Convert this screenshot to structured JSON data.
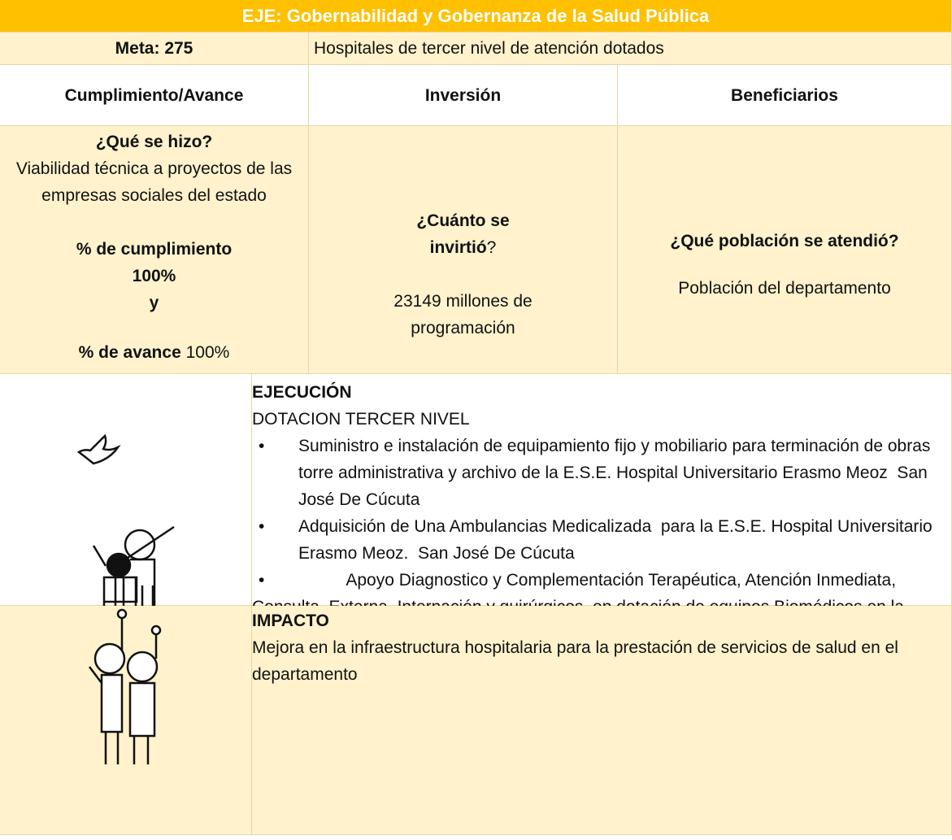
{
  "title": "EJE: Gobernabilidad y Gobernanza de la Salud Pública",
  "meta": {
    "label": "Meta: 275",
    "description": "Hospitales de tercer nivel de atención dotados"
  },
  "headers": [
    "Cumplimiento/Avance",
    "Inversión",
    "Beneficiarios"
  ],
  "cumplimiento": {
    "question": "¿Qué se hizo?",
    "answer": "Viabilidad técnica a proyectos de las empresas sociales del estado",
    "percent_label": "% de cumplimiento",
    "percent_value": "100%",
    "connector": "y",
    "avance_label": "% de avance",
    "avance_value": "100%"
  },
  "inversion": {
    "question": "¿Cuánto se invirtió",
    "question_end": "?",
    "answer": "23149 millones de programación"
  },
  "beneficiarios": {
    "question": "¿Qué población se atendió?",
    "answer": "Población del departamento"
  },
  "ejecucion": {
    "title": "EJECUCIÓN",
    "subtitle": "DOTACION TERCER NIVEL",
    "items": [
      "Suministro e instalación de equipamiento fijo y mobiliario para terminación de obras torre administrativa y archivo de la E.S.E. Hospital Universitario Erasmo Meoz  San José De Cúcuta",
      "Adquisición de Una Ambulancias Medicalizada  para la E.S.E. Hospital Universitario Erasmo Meoz.  San José De Cúcuta",
      "Apoyo Diagnostico y Complementación Terapéutica, Atención Inmediata, Consulta  Externa, Internación y quirúrgicos  en dotación de equipos Biomédicos en la E.S.E Hospital Universitario Erasmo Meoz.   San José De Cúcuta"
    ]
  },
  "impacto": {
    "title": "IMPACTO",
    "text": "Mejora en la infraestructura hospitalaria para la prestación de servicios de salud en el departamento"
  }
}
